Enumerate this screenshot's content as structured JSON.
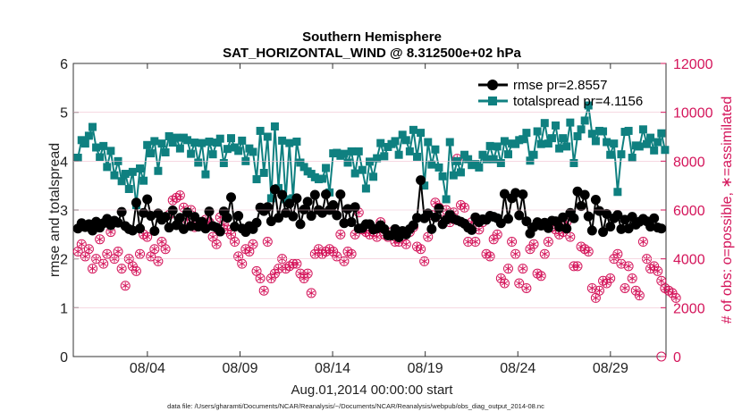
{
  "chart_data": {
    "type": "line",
    "title": "Southern Hemisphere",
    "subtitle": "SAT_HORIZONTAL_WIND @ 8.312500e+02 hPa",
    "xlabel": "Aug.01,2014 00:00:00 start",
    "ylabel_left": "rmse and totalspread",
    "ylabel_right": "# of obs: o=possible, ∗=assimilated",
    "footnote": "data file: /Users/gharamti/Documents/NCAR/Reanalysis/~/Documents/NCAR/Reanalysis/webpub/obs_diag_output_2014-08.nc",
    "xlim": [
      0,
      32
    ],
    "ylim_left": [
      0,
      6
    ],
    "ylim_right": [
      0,
      12000
    ],
    "x_ticks": [
      4,
      9,
      14,
      19,
      24,
      29
    ],
    "x_tick_labels": [
      "08/04",
      "08/09",
      "08/14",
      "08/19",
      "08/24",
      "08/29"
    ],
    "y_ticks_left": [
      0,
      1,
      2,
      3,
      4,
      5,
      6
    ],
    "y_tick_labels_left": [
      "0",
      "1",
      "2",
      "3",
      "4",
      "5",
      "6"
    ],
    "y_ticks_right": [
      0,
      2000,
      4000,
      6000,
      8000,
      10000,
      12000
    ],
    "y_tick_labels_right": [
      "0",
      "2000",
      "4000",
      "6000",
      "8000",
      "10000",
      "12000"
    ],
    "grid": false,
    "legend_position": "top-right",
    "colors": {
      "rmse": "#000000",
      "totalspread": "#0f8080",
      "obs": "#d4145a"
    },
    "series": [
      {
        "name": "rmse pr=2.8557",
        "axis": "left",
        "marker": "circle",
        "values": [
          2.62,
          2.73,
          2.65,
          2.71,
          2.58,
          2.76,
          2.64,
          2.73,
          2.82,
          2.69,
          2.78,
          2.74,
          2.96,
          2.67,
          2.61,
          2.58,
          3.15,
          2.62,
          2.94,
          3.22,
          2.88,
          2.57,
          2.93,
          2.8,
          2.86,
          2.64,
          2.99,
          2.69,
          2.84,
          2.61,
          2.95,
          2.67,
          2.86,
          2.66,
          2.76,
          2.62,
          2.97,
          2.67,
          2.64,
          2.56,
          2.97,
          2.84,
          3.26,
          2.66,
          2.88,
          2.62,
          2.55,
          2.67,
          2.61,
          2.74,
          3.05,
          2.98,
          3.06,
          2.77,
          3.42,
          2.84,
          3.31,
          2.94,
          3.13,
          2.87,
          3.24,
          2.71,
          3.01,
          3.17,
          2.88,
          3.31,
          3.0,
          2.94,
          3.32,
          3.0,
          3.1,
          2.89,
          3.32,
          2.73,
          3.02,
          2.75,
          3.06,
          2.62,
          2.63,
          2.71,
          2.71,
          2.6,
          2.62,
          2.69,
          2.61,
          2.48,
          2.48,
          2.61,
          2.44,
          2.57,
          2.5,
          2.61,
          2.69,
          2.84,
          3.61,
          2.83,
          2.93,
          2.61,
          2.85,
          3.03,
          2.71,
          2.8,
          2.91,
          2.82,
          2.79,
          2.76,
          2.72,
          2.64,
          2.59,
          2.85,
          2.75,
          2.81,
          2.8,
          2.88,
          2.86,
          2.83,
          2.73,
          3.33,
          2.82,
          3.24,
          3.35,
          2.89,
          3.32,
          2.77,
          2.52,
          2.65,
          2.75,
          2.68,
          2.74,
          2.63,
          2.78,
          2.77,
          2.65,
          2.85,
          2.62,
          2.94,
          2.83,
          3.38,
          3.08,
          3.31,
          2.87,
          2.58,
          3.21,
          2.98,
          2.55,
          2.92,
          2.66,
          2.83,
          2.9,
          2.61,
          2.8,
          2.62,
          2.86,
          2.7,
          2.76,
          2.82,
          2.77,
          2.66,
          2.83,
          2.64,
          2.62
        ]
      },
      {
        "name": "totalspread pr=4.1156",
        "axis": "left",
        "marker": "square",
        "values": [
          4.07,
          4.43,
          4.36,
          4.52,
          4.7,
          4.28,
          4.08,
          4.31,
          3.88,
          4.21,
          3.71,
          4.0,
          3.59,
          3.74,
          3.43,
          3.78,
          3.1,
          3.85,
          3.6,
          4.33,
          4.16,
          4.41,
          3.8,
          4.36,
          4.18,
          4.51,
          4.38,
          4.48,
          4.26,
          4.48,
          4.43,
          4.15,
          4.38,
          3.97,
          4.37,
          3.73,
          4.4,
          4.14,
          4.38,
          4.46,
          3.96,
          4.25,
          4.47,
          4.28,
          4.21,
          4.42,
          4.0,
          4.26,
          4.19,
          3.63,
          4.62,
          3.76,
          4.5,
          3.24,
          4.71,
          3.45,
          4.42,
          3.22,
          4.37,
          3.24,
          4.4,
          3.97,
          3.88,
          3.79,
          3.74,
          3.67,
          3.63,
          3.64,
          3.86,
          3.36,
          4.16,
          4.17,
          4.11,
          4.15,
          3.97,
          4.2,
          3.75,
          4.2,
          3.82,
          3.44,
          3.99,
          3.68,
          4.06,
          4.37,
          4.1,
          4.29,
          4.35,
          4.41,
          4.13,
          4.54,
          4.43,
          4.2,
          4.64,
          4.09,
          4.58,
          3.5,
          4.39,
          3.93,
          4.24,
          3.87,
          3.69,
          3.22,
          4.39,
          3.71,
          4.0,
          3.77,
          4.13,
          4.04,
          3.92,
          3.94,
          3.87,
          4.13,
          4.04,
          4.31,
          4.04,
          4.3,
          3.96,
          4.41,
          4.14,
          4.36,
          4.35,
          4.43,
          4.45,
          4.58,
          4.01,
          4.13,
          4.61,
          4.35,
          4.78,
          4.36,
          4.47,
          4.73,
          4.26,
          4.47,
          4.3,
          4.79,
          3.96,
          4.51,
          4.65,
          4.83,
          5.14,
          4.56,
          4.41,
          4.62,
          4.61,
          4.39,
          4.13,
          4.36,
          3.37,
          4.14,
          4.6,
          4.62,
          4.07,
          4.32,
          4.3,
          4.65,
          4.35,
          4.48,
          4.22,
          4.39,
          4.57,
          4.23
        ]
      },
      {
        "name": "obs possible",
        "axis": "right",
        "marker": "circle-open",
        "values": [
          4300,
          4600,
          4100,
          4400,
          3600,
          4000,
          4800,
          3800,
          4200,
          5100,
          4000,
          4300,
          3600,
          2900,
          4000,
          3700,
          3500,
          4200,
          5000,
          4900,
          4100,
          4400,
          3900,
          4700,
          4400,
          5800,
          6400,
          6500,
          6600,
          6100,
          5600,
          6000,
          5300,
          5500,
          5400,
          5600,
          5500,
          4900,
          4600,
          5700,
          5400,
          5200,
          5000,
          4700,
          4100,
          3800,
          4400,
          4300,
          4600,
          3500,
          3200,
          2700,
          4700,
          3200,
          3400,
          3600,
          4000,
          3600,
          3700,
          3800,
          3800,
          3400,
          3200,
          3400,
          2600,
          4200,
          4400,
          4200,
          4300,
          4400,
          4300,
          4100,
          5000,
          3900,
          4300,
          4200,
          5000,
          5900,
          5200,
          5100,
          5000,
          5100,
          4900,
          5500,
          5000,
          4900,
          5100,
          4700,
          4700,
          4900,
          4600,
          5100,
          5300,
          4500,
          4400,
          3900,
          4900,
          5800,
          6300,
          6100,
          5600,
          6000,
          5500,
          5900,
          8100,
          6200,
          6100,
          4700,
          5500,
          4700,
          5200,
          5500,
          4200,
          4100,
          4800,
          5000,
          3200,
          3000,
          3600,
          4700,
          4200,
          3000,
          3600,
          2800,
          4400,
          4600,
          3400,
          3300,
          4200,
          4700,
          5300,
          5200,
          5000,
          5100,
          5500,
          4900,
          3700,
          3700,
          4500,
          4400,
          4300,
          2800,
          2400,
          2700,
          3100,
          3000,
          3200,
          4000,
          4200,
          3800,
          2800,
          3700,
          3200,
          2700,
          2500,
          4700,
          4000,
          3600,
          3700,
          3500,
          3100,
          2800,
          2700,
          2600,
          2400
        ]
      },
      {
        "name": "obs assimilated",
        "axis": "right",
        "marker": "asterisk",
        "values": [
          4300,
          4600,
          4100,
          4400,
          3600,
          4000,
          4800,
          3800,
          4200,
          5100,
          4000,
          4300,
          3600,
          2900,
          4000,
          3700,
          3500,
          4200,
          5000,
          4900,
          4100,
          4400,
          3900,
          4700,
          4400,
          5800,
          6400,
          6500,
          6600,
          6100,
          5600,
          6000,
          5300,
          5500,
          5400,
          5600,
          5500,
          4900,
          4600,
          5700,
          5400,
          5200,
          5000,
          4700,
          4100,
          3800,
          4400,
          4300,
          4600,
          3500,
          3200,
          2700,
          4700,
          3200,
          3400,
          3600,
          4000,
          3600,
          3700,
          3800,
          3800,
          3400,
          3200,
          3400,
          2600,
          4200,
          4400,
          4200,
          4300,
          4400,
          4300,
          4100,
          5000,
          3900,
          4300,
          4200,
          5000,
          5900,
          5200,
          5100,
          5000,
          5100,
          4900,
          5500,
          5000,
          4900,
          5100,
          4700,
          4700,
          4900,
          4600,
          5100,
          5300,
          4500,
          4400,
          3900,
          4900,
          5800,
          6300,
          6100,
          5600,
          6000,
          5500,
          5900,
          8100,
          6200,
          6100,
          4700,
          5500,
          4700,
          5200,
          5500,
          4200,
          4100,
          4800,
          5000,
          3200,
          3000,
          3600,
          4700,
          4200,
          3000,
          3600,
          2800,
          4400,
          4600,
          3400,
          3300,
          4200,
          4700,
          5300,
          5200,
          5000,
          5100,
          5500,
          4900,
          3700,
          3700,
          4500,
          4400,
          4300,
          2800,
          2400,
          2700,
          3100,
          3000,
          3200,
          4000,
          4200,
          3800,
          2800,
          3700,
          3200,
          2700,
          2500,
          4700,
          4000,
          3600,
          3700,
          3500,
          3100,
          2800,
          2700,
          2600,
          2400
        ]
      }
    ]
  }
}
